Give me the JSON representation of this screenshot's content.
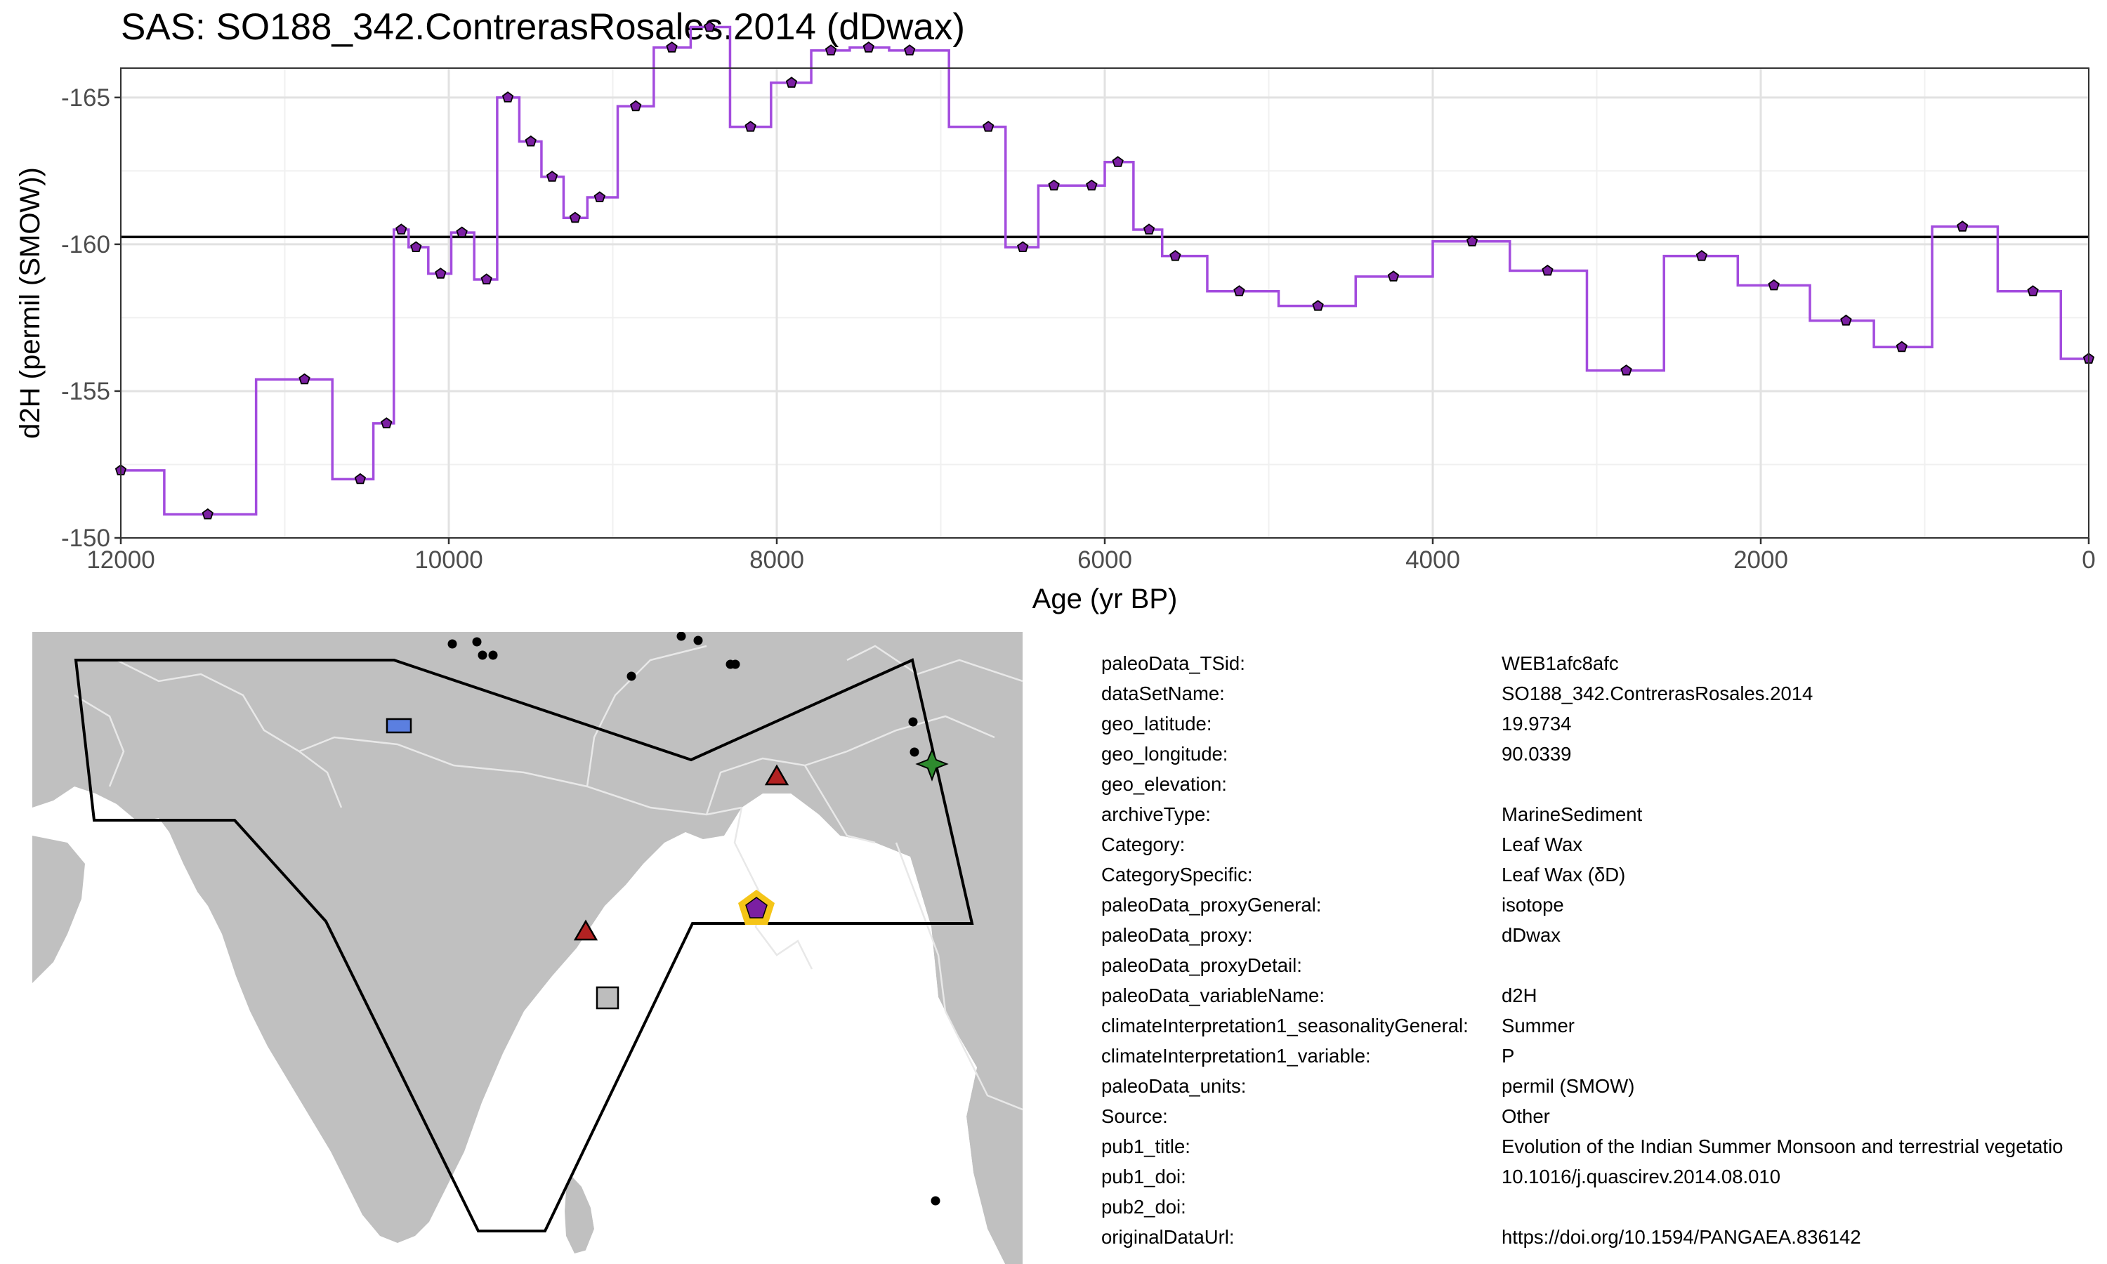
{
  "title": "SAS: SO188_342.ContrerasRosales.2014 (dDwax)",
  "chart_data": {
    "type": "line",
    "step": true,
    "xlabel": "Age (yr BP)",
    "ylabel": "d2H (permil (SMOW))",
    "xlim": [
      12000,
      0
    ],
    "ylim": [
      -150,
      -166
    ],
    "x_reversed": true,
    "y_reversed": true,
    "x_ticks": [
      12000,
      10000,
      8000,
      6000,
      4000,
      2000,
      0
    ],
    "x_tick_labels": [
      "12000",
      "10000",
      "8000",
      "6000",
      "4000",
      "2000",
      "0"
    ],
    "y_ticks": [
      -165,
      -160,
      -155,
      -150
    ],
    "y_tick_labels": [
      "-165",
      "-160",
      "-155",
      "-150"
    ],
    "grid": true,
    "reference_line_y": -160.25,
    "series": [
      {
        "color": "#A34CDE",
        "marker_color": "#7B1FA2",
        "points": [
          [
            12000,
            -152.3
          ],
          [
            11470,
            -150.8
          ],
          [
            10880,
            -155.4
          ],
          [
            10540,
            -152.0
          ],
          [
            10380,
            -153.9
          ],
          [
            10290,
            -160.5
          ],
          [
            10200,
            -159.9
          ],
          [
            10050,
            -159.0
          ],
          [
            9920,
            -160.4
          ],
          [
            9770,
            -158.8
          ],
          [
            9640,
            -165.0
          ],
          [
            9500,
            -163.5
          ],
          [
            9370,
            -162.3
          ],
          [
            9230,
            -160.9
          ],
          [
            9080,
            -161.6
          ],
          [
            8860,
            -164.7
          ],
          [
            8640,
            -166.7
          ],
          [
            8410,
            -167.4
          ],
          [
            8160,
            -164.0
          ],
          [
            7910,
            -165.5
          ],
          [
            7670,
            -166.6
          ],
          [
            7440,
            -166.7
          ],
          [
            7190,
            -166.6
          ],
          [
            6710,
            -164.0
          ],
          [
            6500,
            -159.9
          ],
          [
            6310,
            -162.0
          ],
          [
            6080,
            -162.0
          ],
          [
            5920,
            -162.8
          ],
          [
            5730,
            -160.5
          ],
          [
            5570,
            -159.6
          ],
          [
            5180,
            -158.4
          ],
          [
            4700,
            -157.9
          ],
          [
            4240,
            -158.9
          ],
          [
            3760,
            -160.1
          ],
          [
            3300,
            -159.1
          ],
          [
            2820,
            -155.7
          ],
          [
            2360,
            -159.6
          ],
          [
            1920,
            -158.6
          ],
          [
            1480,
            -157.4
          ],
          [
            1140,
            -156.5
          ],
          [
            770,
            -160.6
          ],
          [
            340,
            -158.4
          ],
          [
            0,
            -156.1
          ]
        ]
      }
    ]
  },
  "map": {
    "colors": {
      "land": "#C0C0C0",
      "boundary": "#E8E8E8",
      "region_outline": "#000000",
      "target_marker": "#7B1FA2",
      "target_halo": "#F5C518",
      "triangle": "#B22222",
      "rectangle": "#5B7FE0",
      "square": "#BDBDBD",
      "star": "#2E8B2E"
    }
  },
  "metadata": [
    {
      "key": "paleoData_TSid:",
      "value": "WEB1afc8afc"
    },
    {
      "key": "dataSetName:",
      "value": "SO188_342.ContrerasRosales.2014"
    },
    {
      "key": "geo_latitude:",
      "value": "19.9734"
    },
    {
      "key": "geo_longitude:",
      "value": "90.0339"
    },
    {
      "key": "geo_elevation:",
      "value": ""
    },
    {
      "key": "archiveType:",
      "value": "MarineSediment"
    },
    {
      "key": "Category:",
      "value": "Leaf Wax"
    },
    {
      "key": "CategorySpecific:",
      "value": "Leaf Wax (δD)"
    },
    {
      "key": "paleoData_proxyGeneral:",
      "value": "isotope"
    },
    {
      "key": "paleoData_proxy:",
      "value": "dDwax"
    },
    {
      "key": "paleoData_proxyDetail:",
      "value": ""
    },
    {
      "key": "paleoData_variableName:",
      "value": "d2H"
    },
    {
      "key": "climateInterpretation1_seasonalityGeneral:",
      "value": "Summer"
    },
    {
      "key": "climateInterpretation1_variable:",
      "value": "P"
    },
    {
      "key": "paleoData_units:",
      "value": "permil (SMOW)"
    },
    {
      "key": "Source:",
      "value": "Other"
    },
    {
      "key": "pub1_title:",
      "value": "Evolution of the Indian Summer Monsoon and terrestrial vegetatio"
    },
    {
      "key": "pub1_doi:",
      "value": "10.1016/j.quascirev.2014.08.010"
    },
    {
      "key": "pub2_doi:",
      "value": ""
    },
    {
      "key": "originalDataUrl:",
      "value": "https://doi.org/10.1594/PANGAEA.836142"
    }
  ]
}
